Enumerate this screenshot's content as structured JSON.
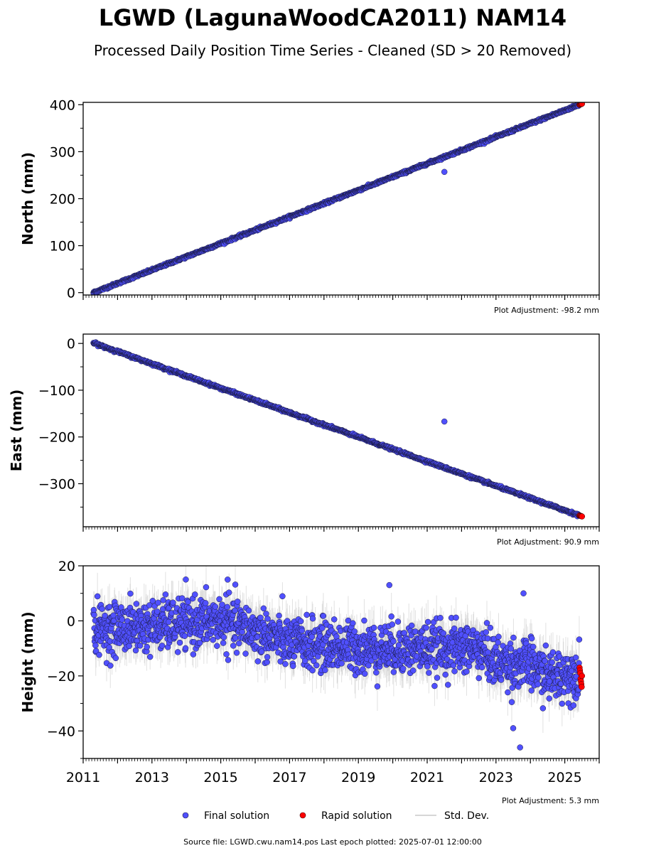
{
  "title": "LGWD (LagunaWoodCA2011) NAM14",
  "subtitle": "Processed Daily Position Time Series - Cleaned (SD > 20 Removed)",
  "source_note": "Source file: LGWD.cwu.nam14.pos  Last epoch plotted: 2025-07-01 12:00:00",
  "legend": {
    "final": "Final solution",
    "rapid": "Rapid solution",
    "std": "Std. Dev."
  },
  "colors": {
    "final": "#5050ff",
    "rapid": "#ff0000",
    "std": "#c8c8c8",
    "marker_edge": "#1a1a40"
  },
  "chart_data": [
    {
      "type": "scatter",
      "ylabel": "North (mm)",
      "adjustment_label": "Plot Adjustment: -98.2 mm",
      "xlim": [
        2011.0,
        2026.0
      ],
      "ylim": [
        -5,
        405
      ],
      "yticks": [
        0,
        100,
        200,
        300,
        400
      ],
      "ytick_labels": [
        "0",
        "100",
        "200",
        "300",
        "400"
      ],
      "xtick_labels_shown": false,
      "final_series": {
        "name": "Final solution",
        "x_start": 2011.3,
        "x_end": 2025.42,
        "y_start": 0,
        "y_end": 400,
        "noise": 1.2
      },
      "rapid_series": {
        "name": "Rapid solution",
        "x_start": 2025.43,
        "x_end": 2025.5,
        "y_start": 400,
        "y_end": 402
      },
      "outliers": [
        {
          "x": 2021.5,
          "y": 257
        }
      ]
    },
    {
      "type": "scatter",
      "ylabel": "East (mm)",
      "adjustment_label": "Plot Adjustment: 90.9 mm",
      "xlim": [
        2011.0,
        2026.0
      ],
      "ylim": [
        -392,
        20
      ],
      "yticks": [
        0,
        -100,
        -200,
        -300
      ],
      "ytick_labels": [
        "0",
        "−100",
        "−200",
        "−300"
      ],
      "xtick_labels_shown": false,
      "final_series": {
        "name": "Final solution",
        "x_start": 2011.3,
        "x_end": 2025.42,
        "y_start": 1,
        "y_end": -368,
        "noise": 1.2
      },
      "rapid_series": {
        "name": "Rapid solution",
        "x_start": 2025.43,
        "x_end": 2025.5,
        "y_start": -368,
        "y_end": -370
      },
      "outliers": [
        {
          "x": 2021.5,
          "y": -167
        }
      ]
    },
    {
      "type": "scatter",
      "ylabel": "Height (mm)",
      "adjustment_label": "Plot Adjustment: 5.3 mm",
      "xlim": [
        2011.0,
        2026.0
      ],
      "ylim": [
        -50,
        20
      ],
      "yticks": [
        20,
        0,
        -20,
        -40
      ],
      "ytick_labels": [
        "20",
        "0",
        "−20",
        "−40"
      ],
      "xtick_labels_shown": true,
      "xticks": [
        2011,
        2013,
        2015,
        2017,
        2019,
        2021,
        2023,
        2025
      ],
      "xtick_labels": [
        "2011",
        "2013",
        "2015",
        "2017",
        "2019",
        "2021",
        "2023",
        "2025"
      ],
      "height_trend": [
        {
          "x": 2011.3,
          "y": -3
        },
        {
          "x": 2013.0,
          "y": -2
        },
        {
          "x": 2015.0,
          "y": 0
        },
        {
          "x": 2016.0,
          "y": -4
        },
        {
          "x": 2017.0,
          "y": -8
        },
        {
          "x": 2019.0,
          "y": -10
        },
        {
          "x": 2021.0,
          "y": -10
        },
        {
          "x": 2022.5,
          "y": -10
        },
        {
          "x": 2023.0,
          "y": -15
        },
        {
          "x": 2024.0,
          "y": -16
        },
        {
          "x": 2024.5,
          "y": -20
        },
        {
          "x": 2025.42,
          "y": -19
        }
      ],
      "final_series": {
        "name": "Final solution",
        "x_start": 2011.3,
        "x_end": 2025.42,
        "noise": 4.5
      },
      "rapid_series": {
        "name": "Rapid solution",
        "x_start": 2025.43,
        "x_end": 2025.5,
        "y_values": [
          -17,
          -18,
          -19,
          -21,
          -22,
          -23,
          -24,
          -20
        ]
      },
      "outliers": [
        {
          "x": 2019.9,
          "y": 13
        },
        {
          "x": 2015.2,
          "y": 15
        },
        {
          "x": 2023.7,
          "y": -46
        },
        {
          "x": 2023.5,
          "y": -39
        },
        {
          "x": 2023.8,
          "y": 10
        }
      ]
    }
  ]
}
